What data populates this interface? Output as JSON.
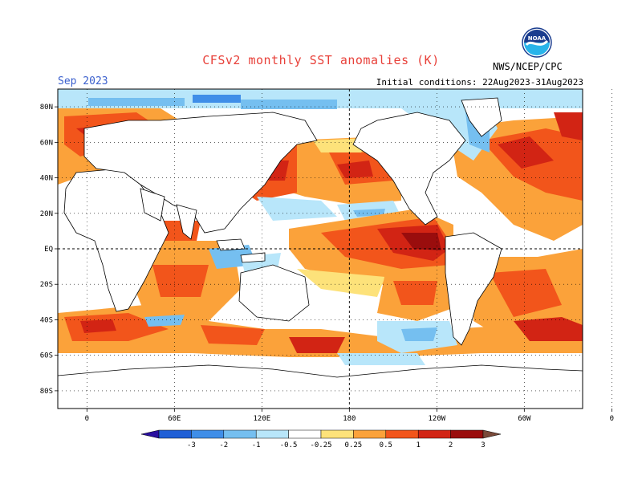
{
  "header": {
    "title": "CFSv2 monthly SST anomalies (K)",
    "month": "Sep 2023",
    "initial_conditions": "Initial conditions: 22Aug2023-31Aug2023",
    "agency": "NWS/NCEP/CPC",
    "logo_text": "NOAA"
  },
  "map": {
    "lon_range": [
      -20,
      340
    ],
    "lat_range": [
      -90,
      90
    ],
    "lat_ticks": [
      "80N",
      "60N",
      "40N",
      "20N",
      "EQ",
      "20S",
      "40S",
      "60S",
      "80S"
    ],
    "lon_ticks": [
      "0",
      "60E",
      "120E",
      "180",
      "120W",
      "60W",
      "0"
    ],
    "gridlines": "dotted",
    "reference_lines": [
      "equator",
      "dateline"
    ]
  },
  "colorbar": {
    "labels": [
      "-3",
      "-2",
      "-1",
      "-0.5",
      "-0.25",
      "0.25",
      "0.5",
      "1",
      "2",
      "3"
    ],
    "colors": [
      "#2a10a0",
      "#1f5fd6",
      "#3f8ee8",
      "#75bff0",
      "#b8e6fa",
      "#ffffff",
      "#fde27a",
      "#fba23a",
      "#f2551b",
      "#d22414",
      "#9a0d0d",
      "#7a4a3a"
    ]
  }
}
